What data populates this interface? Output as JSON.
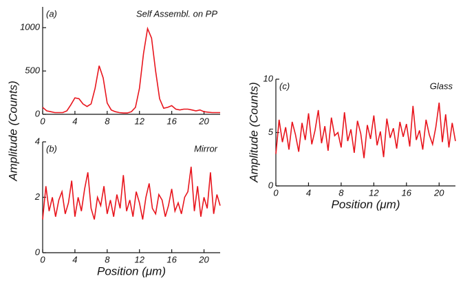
{
  "chart_data": [
    {
      "type": "line",
      "panel": "(a)",
      "annotation": "Self Assembl. on PP",
      "color": "#e8141c",
      "x": [
        0,
        0.5,
        1,
        1.5,
        2,
        2.5,
        3,
        3.5,
        4,
        4.5,
        5,
        5.5,
        6,
        6.5,
        7,
        7.5,
        8,
        8.5,
        9,
        9.5,
        10,
        10.5,
        11,
        11.5,
        12,
        12.5,
        13,
        13.5,
        14,
        14.5,
        15,
        15.5,
        16,
        16.5,
        17,
        17.5,
        18,
        18.5,
        19,
        19.5,
        20,
        20.5,
        21,
        21.5,
        22
      ],
      "values": [
        80,
        40,
        30,
        20,
        20,
        20,
        40,
        110,
        190,
        180,
        120,
        90,
        120,
        300,
        560,
        420,
        130,
        50,
        30,
        20,
        15,
        15,
        30,
        80,
        300,
        700,
        990,
        880,
        500,
        180,
        70,
        80,
        100,
        60,
        50,
        60,
        60,
        50,
        40,
        50,
        30,
        25,
        20,
        20,
        20
      ],
      "xlim": [
        0,
        22
      ],
      "xticks": [
        0,
        4,
        8,
        12,
        16,
        20
      ],
      "ylim": [
        0,
        1240
      ],
      "yticks": [
        0,
        500,
        1000
      ]
    },
    {
      "type": "line",
      "panel": "(b)",
      "annotation": "Mirror",
      "color": "#e8141c",
      "xlabel": "Position (μm)",
      "ylabel": "Amplitude (Counts)",
      "x": [
        0,
        0.4,
        0.8,
        1.2,
        1.6,
        2,
        2.4,
        2.8,
        3.2,
        3.6,
        4,
        4.4,
        4.8,
        5.2,
        5.6,
        6,
        6.4,
        6.8,
        7.2,
        7.6,
        8,
        8.4,
        8.8,
        9.2,
        9.6,
        10,
        10.4,
        10.8,
        11.2,
        11.6,
        12,
        12.4,
        12.8,
        13.2,
        13.6,
        14,
        14.4,
        14.8,
        15.2,
        15.6,
        16,
        16.4,
        16.8,
        17.2,
        17.6,
        18,
        18.4,
        18.8,
        19.2,
        19.6,
        20,
        20.4,
        20.8,
        21.2,
        21.6,
        22
      ],
      "values": [
        1.2,
        2.4,
        1.5,
        2.0,
        1.3,
        1.9,
        2.2,
        1.4,
        1.8,
        2.6,
        1.3,
        2.0,
        1.5,
        2.3,
        2.9,
        1.6,
        1.2,
        2.0,
        1.7,
        2.4,
        1.4,
        1.9,
        1.3,
        2.1,
        1.6,
        2.8,
        1.5,
        1.9,
        1.3,
        2.2,
        1.8,
        1.2,
        2.0,
        2.5,
        1.6,
        1.4,
        2.1,
        1.9,
        1.3,
        1.7,
        2.3,
        1.5,
        1.8,
        1.4,
        2.0,
        2.2,
        3.1,
        1.5,
        2.4,
        1.3,
        2.0,
        1.6,
        2.9,
        1.4,
        2.1,
        1.7
      ],
      "xlim": [
        0,
        22
      ],
      "xticks": [
        0,
        4,
        8,
        12,
        16,
        20
      ],
      "ylim": [
        0,
        4
      ],
      "yticks": [
        0,
        2,
        4
      ]
    },
    {
      "type": "line",
      "panel": "(c)",
      "annotation": "Glass",
      "color": "#e8141c",
      "xlabel": "Position (μm)",
      "ylabel": "Amplitude (Counts)",
      "x": [
        0,
        0.4,
        0.8,
        1.2,
        1.6,
        2,
        2.4,
        2.8,
        3.2,
        3.6,
        4,
        4.4,
        4.8,
        5.2,
        5.6,
        6,
        6.4,
        6.8,
        7.2,
        7.6,
        8,
        8.4,
        8.8,
        9.2,
        9.6,
        10,
        10.4,
        10.8,
        11.2,
        11.6,
        12,
        12.4,
        12.8,
        13.2,
        13.6,
        14,
        14.4,
        14.8,
        15.2,
        15.6,
        16,
        16.4,
        16.8,
        17.2,
        17.6,
        18,
        18.4,
        18.8,
        19.2,
        19.6,
        20,
        20.4,
        20.8,
        21.2,
        21.6,
        22
      ],
      "values": [
        3.0,
        6.2,
        4.1,
        5.5,
        3.4,
        6.0,
        4.8,
        3.2,
        5.9,
        4.3,
        6.8,
        3.9,
        5.2,
        7.1,
        4.0,
        5.6,
        3.3,
        6.4,
        4.7,
        5.0,
        3.6,
        6.9,
        4.2,
        5.3,
        3.1,
        6.1,
        4.9,
        2.6,
        5.7,
        4.4,
        6.6,
        3.8,
        5.1,
        2.7,
        6.3,
        4.5,
        5.4,
        3.5,
        6.0,
        4.6,
        5.8,
        3.7,
        7.5,
        4.3,
        5.2,
        3.4,
        6.2,
        4.8,
        3.9,
        5.5,
        7.8,
        4.1,
        6.7,
        3.6,
        5.9,
        4.2
      ],
      "xlim": [
        0,
        22
      ],
      "xticks": [
        0,
        4,
        8,
        12,
        16,
        20
      ],
      "ylim": [
        0,
        10
      ],
      "yticks": [
        0,
        5,
        10
      ]
    }
  ]
}
